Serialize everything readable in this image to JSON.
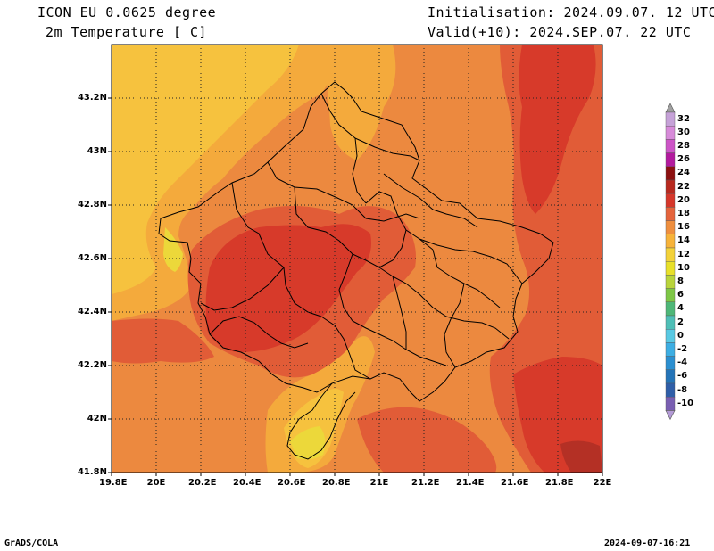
{
  "header": {
    "model": "ICON EU 0.0625 degree",
    "variable": "2m Temperature [ C]",
    "init": "Initialisation: 2024.09.07. 12 UTC",
    "valid": "Valid(+10): 2024.SEP.07. 22 UTC"
  },
  "footer": {
    "left": "GrADS/COLA",
    "right": "2024-09-07-16:21"
  },
  "axes": {
    "lon_labels": [
      "19.8E",
      "20E",
      "20.2E",
      "20.4E",
      "20.6E",
      "20.8E",
      "21E",
      "21.2E",
      "21.4E",
      "21.6E",
      "21.8E",
      "22E"
    ],
    "lat_labels": [
      "43.2N",
      "43N",
      "42.8N",
      "42.6N",
      "42.4N",
      "42.2N",
      "42N",
      "41.8N"
    ]
  },
  "colorbar": {
    "labels": [
      "32",
      "30",
      "28",
      "26",
      "24",
      "22",
      "20",
      "18",
      "16",
      "14",
      "12",
      "10",
      "8",
      "6",
      "4",
      "2",
      "0",
      "-2",
      "-4",
      "-6",
      "-8",
      "-10"
    ],
    "colors": [
      "#c6a2d8",
      "#d78bd9",
      "#cd55c7",
      "#b31a9e",
      "#8c1010",
      "#b82a1f",
      "#d6372a",
      "#e5643c",
      "#ef8f3f",
      "#f7b33a",
      "#f3d23a",
      "#e8e02a",
      "#b9d43b",
      "#7ec746",
      "#4eb778",
      "#4fbfb7",
      "#59c9e3",
      "#3daee3",
      "#2b8fd0",
      "#2474b8",
      "#2f5ea8",
      "#7a5fb2"
    ],
    "top_cap": "#a0a0a0",
    "bottom_cap": "#b39ad6"
  },
  "map_colors": {
    "t22": "#d73a2a",
    "t20": "#e15c37",
    "t18": "#ec893f",
    "t16": "#f4aa3c",
    "t14": "#f6c23e",
    "t12": "#ecd83a",
    "t24": "#b43025"
  }
}
